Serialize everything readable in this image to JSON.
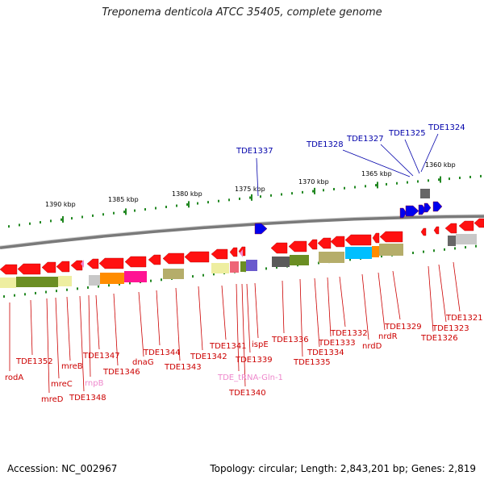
{
  "title": "Treponema denticola ATCC 35405, complete genome",
  "footer": {
    "accession": "Accession: NC_002967",
    "summary": "Topology: circular; Length: 2,843,201 bp; Genes: 2,819"
  },
  "colors": {
    "forward_gene": "#ff0000",
    "reverse_gene": "#ff0000",
    "upper_gene": "#0000ff",
    "label_red": "#cc0000",
    "label_blue": "#0000aa",
    "label_pink": "#ee88cc",
    "backbone": "#808080",
    "ticks": "#228822"
  },
  "kbp_labels": [
    "1390 kbp",
    "1385 kbp",
    "1380 kbp",
    "1375 kbp",
    "1370 kbp",
    "1365 kbp",
    "1360 kbp"
  ],
  "upper_labels": [
    "TDE1337",
    "TDE1328",
    "TDE1327",
    "TDE1325",
    "TDE1324"
  ],
  "lower_labels": [
    "rodA",
    "TDE1352",
    "mreD",
    "mreC",
    "mreB",
    "TDE1348",
    "rnpB",
    "TDE1347",
    "TDE1346",
    "dnaG",
    "TDE1344",
    "TDE1343",
    "TDE1342",
    "TDE1341",
    "TDE_tRNA-Gln-1",
    "TDE1340",
    "TDE1339",
    "ispE",
    "TDE1336",
    "TDE1335",
    "TDE1334",
    "TDE1333",
    "TDE1332",
    "nrdD",
    "nrdR",
    "TDE1329",
    "TDE1326",
    "TDE1323",
    "TDE1321"
  ]
}
